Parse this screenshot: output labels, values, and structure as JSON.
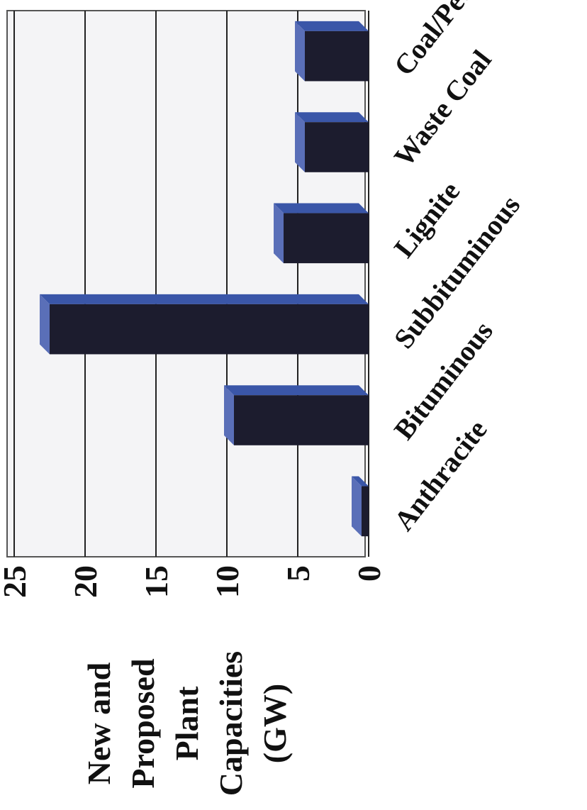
{
  "chart_data": {
    "type": "bar",
    "y_label": [
      "New and",
      "Proposed",
      "Plant",
      "Capacities",
      "(GW)"
    ],
    "categories": [
      "Anthracite",
      "Bituminous",
      "Subbituminous",
      "Lignite",
      "Waste Coal",
      "Coal/Pet Coke"
    ],
    "values": [
      0.5,
      9.5,
      22.5,
      6,
      4.5,
      4.5
    ],
    "color": "#1c1c2e",
    "ylim": [
      0,
      25
    ],
    "yticks": [
      0,
      5,
      10,
      15,
      20,
      25
    ],
    "grid": true
  }
}
